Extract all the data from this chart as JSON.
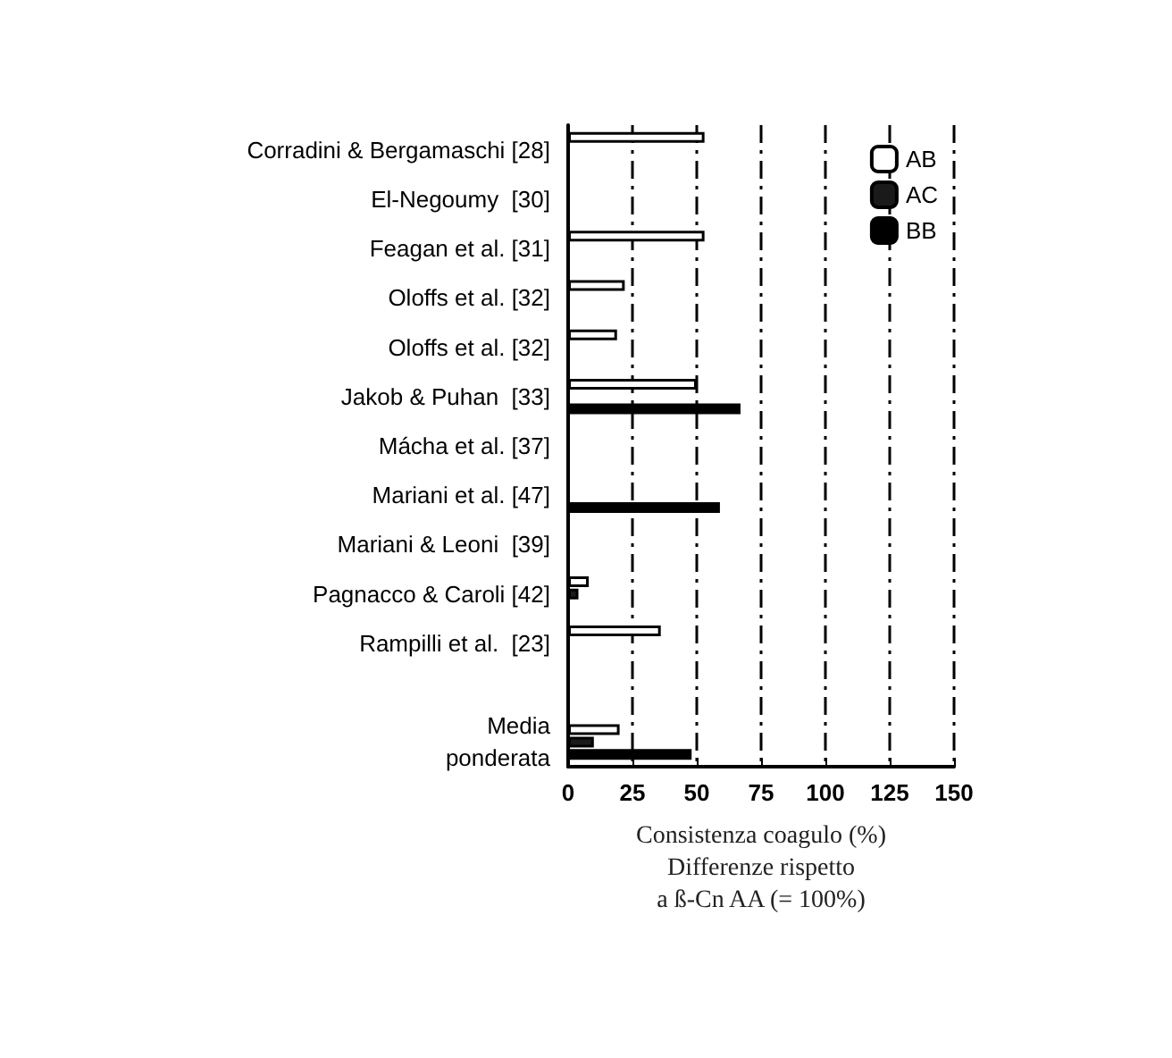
{
  "chart_data": {
    "type": "bar",
    "orientation": "horizontal",
    "xlabel": "Consistenza coagulo (%)\nDifferenze rispetto\na ß-Cn AA (= 100%)",
    "categories": [
      "Corradini & Bergamaschi [28]",
      "El-Negoumy  [30]",
      "Feagan et al. [31]",
      "Oloffs et al. [32]",
      "Oloffs et al. [32]",
      "Jakob & Puhan  [33]",
      "Mácha et al. [37]",
      "Mariani et al. [47]",
      "Mariani & Leoni  [39]",
      "Pagnacco & Caroli [42]",
      "Rampilli et al.  [23]",
      null,
      "Media\nponderata"
    ],
    "series": [
      {
        "name": "AB",
        "color": "#ffffff",
        "values": [
          53,
          null,
          53,
          22,
          19,
          50,
          null,
          null,
          null,
          8,
          36,
          null,
          20
        ]
      },
      {
        "name": "AC",
        "color": "#1a1a1a",
        "values": [
          null,
          null,
          null,
          null,
          null,
          null,
          null,
          null,
          null,
          4,
          null,
          null,
          10
        ]
      },
      {
        "name": "BB",
        "color": "#000000",
        "values": [
          null,
          null,
          null,
          null,
          null,
          67,
          null,
          59,
          null,
          null,
          null,
          null,
          48
        ]
      }
    ],
    "xlim": [
      0,
      150
    ],
    "xticks": [
      0,
      25,
      50,
      75,
      100,
      125,
      150
    ],
    "grid": "x",
    "legend": "top right"
  }
}
